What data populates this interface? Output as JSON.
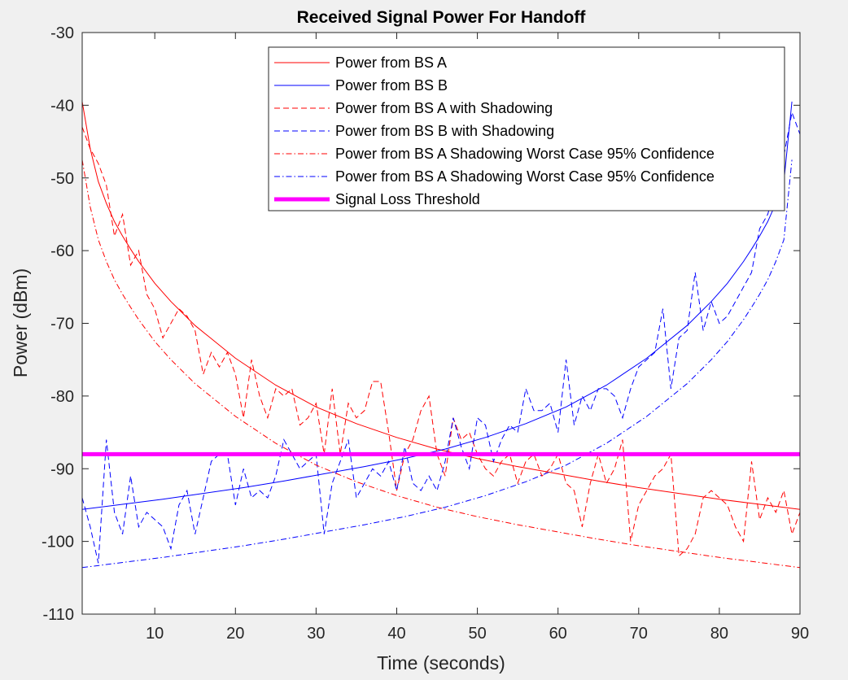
{
  "chart_data": {
    "type": "line",
    "title": "Received Signal Power For Handoff",
    "xlabel": "Time (seconds)",
    "ylabel": "Power (dBm)",
    "xlim": [
      1,
      90
    ],
    "ylim": [
      -110,
      -30
    ],
    "xticks": [
      10,
      20,
      30,
      40,
      50,
      60,
      70,
      80,
      90
    ],
    "yticks": [
      -110,
      -100,
      -90,
      -80,
      -70,
      -60,
      -50,
      -40,
      -30
    ],
    "legend_position": "top-right",
    "grid": false,
    "series": [
      {
        "name": "Power from BS A",
        "color": "#ff0000",
        "style": "solid",
        "x": [
          1,
          2,
          3,
          4,
          5,
          6,
          7,
          8,
          10,
          12,
          15,
          20,
          25,
          30,
          35,
          40,
          45,
          50,
          55,
          60,
          65,
          70,
          75,
          80,
          85,
          90
        ],
        "y": [
          -39.5,
          -46,
          -50.5,
          -53.5,
          -56,
          -58,
          -59.8,
          -61.5,
          -64.5,
          -67,
          -70.3,
          -74.8,
          -78.5,
          -81.5,
          -83.8,
          -85.7,
          -87.3,
          -88.6,
          -89.7,
          -90.7,
          -91.7,
          -92.6,
          -93.4,
          -94.2,
          -94.9,
          -95.6
        ]
      },
      {
        "name": "Power from BS B",
        "color": "#0000ff",
        "style": "solid",
        "x": [
          1,
          6,
          11,
          16,
          21,
          26,
          31,
          36,
          41,
          46,
          51,
          56,
          61,
          66,
          71,
          76,
          79,
          81,
          83,
          84,
          85,
          86,
          87,
          88,
          89
        ],
        "y": [
          -95.6,
          -94.9,
          -94.2,
          -93.4,
          -92.6,
          -91.7,
          -90.7,
          -89.7,
          -88.6,
          -87.3,
          -85.7,
          -83.8,
          -81.5,
          -78.5,
          -74.8,
          -70.3,
          -67,
          -64.5,
          -61.5,
          -59.8,
          -58,
          -56,
          -53.5,
          -50.5,
          -39.5
        ]
      },
      {
        "name": "Power from BS A with Shadowing",
        "color": "#ff0000",
        "style": "dashed",
        "x": [
          1,
          2,
          3,
          4,
          5,
          6,
          7,
          8,
          9,
          10,
          11,
          12,
          13,
          14,
          15,
          16,
          17,
          18,
          19,
          20,
          21,
          22,
          23,
          24,
          25,
          26,
          27,
          28,
          29,
          30,
          31,
          32,
          33,
          34,
          35,
          36,
          37,
          38,
          39,
          40,
          41,
          42,
          43,
          44,
          45,
          46,
          47,
          48,
          49,
          50,
          51,
          52,
          53,
          54,
          55,
          56,
          57,
          58,
          59,
          60,
          61,
          62,
          63,
          64,
          65,
          66,
          67,
          68,
          69,
          70,
          71,
          72,
          73,
          74,
          75,
          76,
          77,
          78,
          79,
          80,
          81,
          82,
          83,
          84,
          85,
          86,
          87,
          88,
          89,
          90
        ],
        "y": [
          -43,
          -46,
          -48,
          -51,
          -58,
          -55,
          -62,
          -60,
          -66,
          -68,
          -72,
          -70,
          -68,
          -69,
          -71,
          -77,
          -74,
          -76,
          -74,
          -77,
          -83,
          -75,
          -80,
          -83,
          -79,
          -80,
          -79,
          -84,
          -83,
          -81,
          -88,
          -79,
          -88,
          -81,
          -83,
          -82,
          -78,
          -78,
          -85,
          -93,
          -88,
          -86,
          -82,
          -80,
          -88,
          -91,
          -83,
          -86,
          -85,
          -88,
          -90,
          -91,
          -89,
          -88,
          -92,
          -89,
          -88,
          -91,
          -90,
          -88,
          -92,
          -93,
          -98,
          -92,
          -88,
          -92,
          -90,
          -86,
          -100,
          -95,
          -93,
          -91,
          -90,
          -88,
          -102,
          -101,
          -99,
          -94,
          -93,
          -94,
          -95,
          -98,
          -100,
          -89,
          -97,
          -94,
          -96,
          -93,
          -99,
          -96
        ]
      },
      {
        "name": "Power from BS B with Shadowing",
        "color": "#0000ff",
        "style": "dashed",
        "x": [
          1,
          2,
          3,
          4,
          5,
          6,
          7,
          8,
          9,
          10,
          11,
          12,
          13,
          14,
          15,
          16,
          17,
          18,
          19,
          20,
          21,
          22,
          23,
          24,
          25,
          26,
          27,
          28,
          29,
          30,
          31,
          32,
          33,
          34,
          35,
          36,
          37,
          38,
          39,
          40,
          41,
          42,
          43,
          44,
          45,
          46,
          47,
          48,
          49,
          50,
          51,
          52,
          53,
          54,
          55,
          56,
          57,
          58,
          59,
          60,
          61,
          62,
          63,
          64,
          65,
          66,
          67,
          68,
          69,
          70,
          71,
          72,
          73,
          74,
          75,
          76,
          77,
          78,
          79,
          80,
          81,
          82,
          83,
          84,
          85,
          86,
          87,
          88,
          89,
          90
        ],
        "y": [
          -94,
          -98,
          -103,
          -86,
          -96,
          -99,
          -91,
          -98,
          -96,
          -97,
          -98,
          -101,
          -95,
          -93,
          -99,
          -94,
          -89,
          -88,
          -88,
          -95,
          -90,
          -94,
          -93,
          -94,
          -91,
          -86,
          -88,
          -90,
          -89,
          -88,
          -99,
          -92,
          -89,
          -86,
          -94,
          -92,
          -90,
          -91,
          -89,
          -93,
          -87,
          -92,
          -93,
          -91,
          -93,
          -89,
          -83,
          -87,
          -90,
          -83,
          -84,
          -89,
          -86,
          -84,
          -85,
          -79,
          -82,
          -82,
          -81,
          -85,
          -75,
          -84,
          -80,
          -82,
          -79,
          -79,
          -80,
          -83,
          -79,
          -76,
          -75,
          -74,
          -68,
          -79,
          -72,
          -71,
          -63,
          -71,
          -67,
          -70,
          -69,
          -67,
          -65,
          -63,
          -57,
          -55,
          -51,
          -47,
          -41,
          -44
        ]
      },
      {
        "name": "Power from BS A Shadowing Worst Case 95% Confidence",
        "color": "#ff0000",
        "style": "dashdot",
        "x": [
          1,
          2,
          3,
          4,
          5,
          6,
          7,
          8,
          10,
          12,
          15,
          20,
          25,
          30,
          35,
          40,
          45,
          50,
          55,
          60,
          65,
          70,
          75,
          80,
          85,
          90
        ],
        "y": [
          -47.5,
          -54,
          -58.5,
          -61.5,
          -64,
          -66,
          -67.8,
          -69.5,
          -72.5,
          -75,
          -78.3,
          -82.8,
          -86.5,
          -89.5,
          -91.8,
          -93.7,
          -95.3,
          -96.6,
          -97.7,
          -98.7,
          -99.7,
          -100.6,
          -101.4,
          -102.2,
          -102.9,
          -103.6
        ]
      },
      {
        "name": "Power from BS A Shadowing Worst Case 95% Confidence",
        "color": "#0000ff",
        "style": "dashdot",
        "x": [
          1,
          6,
          11,
          16,
          21,
          26,
          31,
          36,
          41,
          46,
          51,
          56,
          61,
          66,
          71,
          76,
          79,
          81,
          83,
          84,
          85,
          86,
          87,
          88,
          89
        ],
        "y": [
          -103.6,
          -102.9,
          -102.2,
          -101.4,
          -100.6,
          -99.7,
          -98.7,
          -97.7,
          -96.6,
          -95.3,
          -93.7,
          -91.8,
          -89.5,
          -86.5,
          -82.8,
          -78.3,
          -75,
          -72.5,
          -69.5,
          -67.8,
          -66,
          -64,
          -61.5,
          -58.5,
          -47.5
        ]
      },
      {
        "name": "Signal Loss Threshold",
        "color": "#ff00ff",
        "style": "thick",
        "x": [
          1,
          90
        ],
        "y": [
          -88,
          -88
        ]
      }
    ]
  }
}
